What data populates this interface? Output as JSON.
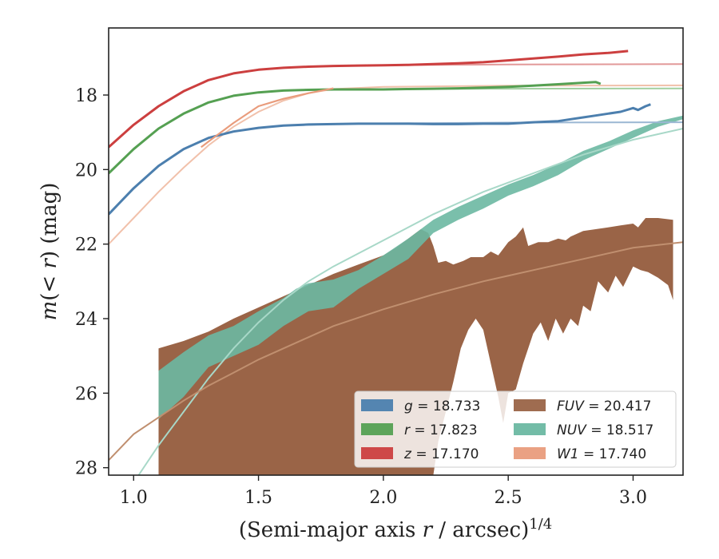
{
  "chart_data": {
    "type": "area",
    "xlabel_main": "(Semi-major axis ",
    "xlabel_var": "r",
    "xlabel_mid": " / arcsec)",
    "xlabel_sup": "1/4",
    "ylabel_pre": "m",
    "ylabel_mid": "(< ",
    "ylabel_var": "r",
    "ylabel_post": ") (mag)",
    "xlim": [
      0.9,
      3.2
    ],
    "ylim": [
      28.2,
      16.2
    ],
    "y_inverted": true,
    "xticks": [
      1.0,
      1.5,
      2.0,
      2.5,
      3.0
    ],
    "xtick_labels": [
      "1.0",
      "1.5",
      "2.0",
      "2.5",
      "3.0"
    ],
    "yticks": [
      18,
      20,
      22,
      24,
      26,
      28
    ],
    "ytick_labels": [
      "18",
      "20",
      "22",
      "24",
      "26",
      "28"
    ],
    "legend_location": "lower-right",
    "series": [
      {
        "name": "g = 18.733",
        "var": "g",
        "value": "18.733",
        "color": "#4c7fae",
        "model_color": "#9bb7d3",
        "points": [
          [
            0.9,
            21.2
          ],
          [
            1.0,
            20.5
          ],
          [
            1.1,
            19.9
          ],
          [
            1.2,
            19.45
          ],
          [
            1.3,
            19.15
          ],
          [
            1.4,
            18.98
          ],
          [
            1.5,
            18.88
          ],
          [
            1.6,
            18.82
          ],
          [
            1.7,
            18.79
          ],
          [
            1.8,
            18.78
          ],
          [
            1.9,
            18.77
          ],
          [
            2.0,
            18.77
          ],
          [
            2.1,
            18.77
          ],
          [
            2.2,
            18.78
          ],
          [
            2.3,
            18.78
          ],
          [
            2.4,
            18.77
          ],
          [
            2.5,
            18.77
          ],
          [
            2.6,
            18.73
          ],
          [
            2.7,
            18.7
          ],
          [
            2.75,
            18.65
          ],
          [
            2.8,
            18.6
          ],
          [
            2.85,
            18.55
          ],
          [
            2.9,
            18.5
          ],
          [
            2.95,
            18.45
          ],
          [
            3.0,
            18.35
          ],
          [
            3.02,
            18.4
          ],
          [
            3.05,
            18.3
          ],
          [
            3.07,
            18.25
          ]
        ],
        "model": [
          [
            0.9,
            21.2
          ],
          [
            1.0,
            20.5
          ],
          [
            1.1,
            19.9
          ],
          [
            1.2,
            19.45
          ],
          [
            1.3,
            19.15
          ],
          [
            1.4,
            18.98
          ],
          [
            1.5,
            18.88
          ],
          [
            1.6,
            18.82
          ],
          [
            1.8,
            18.78
          ],
          [
            2.0,
            18.76
          ],
          [
            2.5,
            18.74
          ],
          [
            3.2,
            18.73
          ]
        ]
      },
      {
        "name": "r = 17.823",
        "var": "r",
        "value": "17.823",
        "color": "#55a052",
        "model_color": "#a3cfa1",
        "points": [
          [
            0.9,
            20.1
          ],
          [
            1.0,
            19.45
          ],
          [
            1.1,
            18.9
          ],
          [
            1.2,
            18.5
          ],
          [
            1.3,
            18.2
          ],
          [
            1.4,
            18.02
          ],
          [
            1.5,
            17.93
          ],
          [
            1.6,
            17.88
          ],
          [
            1.7,
            17.86
          ],
          [
            1.8,
            17.85
          ],
          [
            1.9,
            17.85
          ],
          [
            2.0,
            17.85
          ],
          [
            2.1,
            17.84
          ],
          [
            2.2,
            17.83
          ],
          [
            2.3,
            17.82
          ],
          [
            2.4,
            17.8
          ],
          [
            2.5,
            17.78
          ],
          [
            2.6,
            17.75
          ],
          [
            2.7,
            17.71
          ],
          [
            2.8,
            17.67
          ],
          [
            2.85,
            17.65
          ],
          [
            2.87,
            17.7
          ]
        ],
        "model": [
          [
            0.9,
            20.1
          ],
          [
            1.0,
            19.45
          ],
          [
            1.1,
            18.9
          ],
          [
            1.2,
            18.5
          ],
          [
            1.3,
            18.2
          ],
          [
            1.4,
            18.02
          ],
          [
            1.5,
            17.93
          ],
          [
            1.6,
            17.88
          ],
          [
            1.8,
            17.85
          ],
          [
            2.0,
            17.84
          ],
          [
            2.5,
            17.83
          ],
          [
            3.2,
            17.823
          ]
        ]
      },
      {
        "name": "z = 17.170",
        "var": "z",
        "value": "17.170",
        "color": "#cc3f3f",
        "model_color": "#e29999",
        "points": [
          [
            0.9,
            19.4
          ],
          [
            1.0,
            18.8
          ],
          [
            1.1,
            18.3
          ],
          [
            1.2,
            17.9
          ],
          [
            1.3,
            17.6
          ],
          [
            1.4,
            17.42
          ],
          [
            1.5,
            17.32
          ],
          [
            1.6,
            17.27
          ],
          [
            1.7,
            17.24
          ],
          [
            1.8,
            17.22
          ],
          [
            1.9,
            17.21
          ],
          [
            2.0,
            17.2
          ],
          [
            2.1,
            17.19
          ],
          [
            2.2,
            17.17
          ],
          [
            2.3,
            17.15
          ],
          [
            2.4,
            17.12
          ],
          [
            2.5,
            17.07
          ],
          [
            2.6,
            17.02
          ],
          [
            2.7,
            16.97
          ],
          [
            2.8,
            16.91
          ],
          [
            2.9,
            16.87
          ],
          [
            2.98,
            16.82
          ]
        ],
        "model": [
          [
            0.9,
            19.4
          ],
          [
            1.0,
            18.8
          ],
          [
            1.1,
            18.3
          ],
          [
            1.2,
            17.9
          ],
          [
            1.3,
            17.6
          ],
          [
            1.4,
            17.42
          ],
          [
            1.5,
            17.32
          ],
          [
            1.6,
            17.27
          ],
          [
            1.8,
            17.22
          ],
          [
            2.0,
            17.2
          ],
          [
            2.5,
            17.18
          ],
          [
            3.2,
            17.17
          ]
        ]
      },
      {
        "name": "W1 = 17.740",
        "var": "W1",
        "value": "17.740",
        "color": "#e99c7c",
        "model_color": "#f1c1ab",
        "points": [
          [
            1.27,
            19.4
          ],
          [
            1.3,
            19.25
          ],
          [
            1.4,
            18.75
          ],
          [
            1.5,
            18.3
          ],
          [
            1.6,
            18.1
          ],
          [
            1.7,
            17.95
          ],
          [
            1.8,
            17.82
          ]
        ],
        "model": [
          [
            0.9,
            22.0
          ],
          [
            1.0,
            21.3
          ],
          [
            1.1,
            20.6
          ],
          [
            1.2,
            19.95
          ],
          [
            1.3,
            19.35
          ],
          [
            1.4,
            18.85
          ],
          [
            1.5,
            18.45
          ],
          [
            1.6,
            18.15
          ],
          [
            1.7,
            17.95
          ],
          [
            1.8,
            17.84
          ],
          [
            2.0,
            17.78
          ],
          [
            2.5,
            17.75
          ],
          [
            3.2,
            17.74
          ]
        ]
      }
    ],
    "bands": [
      {
        "name": "NUV = 18.517",
        "var": "NUV",
        "value": "18.517",
        "color": "#6cb8a2",
        "upper": [
          [
            1.1,
            25.4
          ],
          [
            1.2,
            24.9
          ],
          [
            1.3,
            24.45
          ],
          [
            1.4,
            24.2
          ],
          [
            1.5,
            23.8
          ],
          [
            1.6,
            23.45
          ],
          [
            1.65,
            23.2
          ],
          [
            1.7,
            23.05
          ],
          [
            1.8,
            22.95
          ],
          [
            1.9,
            22.7
          ],
          [
            2.0,
            22.3
          ],
          [
            2.1,
            21.85
          ],
          [
            2.2,
            21.35
          ],
          [
            2.3,
            21.0
          ],
          [
            2.4,
            20.7
          ],
          [
            2.5,
            20.4
          ],
          [
            2.6,
            20.15
          ],
          [
            2.7,
            19.85
          ],
          [
            2.8,
            19.5
          ],
          [
            2.9,
            19.25
          ],
          [
            3.0,
            18.95
          ],
          [
            3.1,
            18.7
          ],
          [
            3.2,
            18.55
          ]
        ],
        "lower": [
          [
            1.1,
            26.7
          ],
          [
            1.2,
            26.1
          ],
          [
            1.3,
            25.3
          ],
          [
            1.4,
            25.0
          ],
          [
            1.5,
            24.7
          ],
          [
            1.6,
            24.2
          ],
          [
            1.7,
            23.8
          ],
          [
            1.8,
            23.7
          ],
          [
            1.9,
            23.2
          ],
          [
            2.0,
            22.8
          ],
          [
            2.1,
            22.4
          ],
          [
            2.2,
            21.7
          ],
          [
            2.3,
            21.35
          ],
          [
            2.4,
            21.05
          ],
          [
            2.5,
            20.7
          ],
          [
            2.6,
            20.45
          ],
          [
            2.7,
            20.15
          ],
          [
            2.8,
            19.75
          ],
          [
            2.9,
            19.45
          ],
          [
            3.0,
            19.15
          ],
          [
            3.1,
            18.85
          ],
          [
            3.2,
            18.65
          ]
        ],
        "model": [
          [
            1.02,
            28.2
          ],
          [
            1.1,
            27.4
          ],
          [
            1.2,
            26.5
          ],
          [
            1.3,
            25.6
          ],
          [
            1.4,
            24.8
          ],
          [
            1.5,
            24.1
          ],
          [
            1.6,
            23.5
          ],
          [
            1.7,
            23.0
          ],
          [
            1.8,
            22.6
          ],
          [
            2.0,
            21.9
          ],
          [
            2.2,
            21.2
          ],
          [
            2.4,
            20.6
          ],
          [
            2.6,
            20.1
          ],
          [
            2.8,
            19.6
          ],
          [
            3.0,
            19.2
          ],
          [
            3.2,
            18.9
          ]
        ]
      },
      {
        "name": "FUV = 20.417",
        "var": "FUV",
        "value": "20.417",
        "color": "#9a6447",
        "upper": [
          [
            1.1,
            24.8
          ],
          [
            1.2,
            24.6
          ],
          [
            1.3,
            24.35
          ],
          [
            1.4,
            24.0
          ],
          [
            1.5,
            23.7
          ],
          [
            1.6,
            23.4
          ],
          [
            1.7,
            23.1
          ],
          [
            1.8,
            22.8
          ],
          [
            1.9,
            22.55
          ],
          [
            2.0,
            22.3
          ],
          [
            2.05,
            22.1
          ],
          [
            2.1,
            21.85
          ],
          [
            2.15,
            21.6
          ],
          [
            2.18,
            21.7
          ],
          [
            2.2,
            22.05
          ],
          [
            2.22,
            22.5
          ],
          [
            2.25,
            22.45
          ],
          [
            2.28,
            22.55
          ],
          [
            2.3,
            22.5
          ],
          [
            2.32,
            22.45
          ],
          [
            2.35,
            22.35
          ],
          [
            2.4,
            22.35
          ],
          [
            2.43,
            22.2
          ],
          [
            2.46,
            22.3
          ],
          [
            2.5,
            21.95
          ],
          [
            2.53,
            21.8
          ],
          [
            2.56,
            21.55
          ],
          [
            2.58,
            22.05
          ],
          [
            2.62,
            21.95
          ],
          [
            2.66,
            21.95
          ],
          [
            2.7,
            21.85
          ],
          [
            2.73,
            21.9
          ],
          [
            2.75,
            21.8
          ],
          [
            2.8,
            21.65
          ],
          [
            2.85,
            21.6
          ],
          [
            2.9,
            21.55
          ],
          [
            2.95,
            21.5
          ],
          [
            3.0,
            21.45
          ],
          [
            3.02,
            21.55
          ],
          [
            3.05,
            21.3
          ],
          [
            3.1,
            21.3
          ],
          [
            3.16,
            21.35
          ]
        ],
        "lower": [
          [
            1.1,
            28.2
          ],
          [
            2.2,
            28.2
          ],
          [
            2.22,
            27.3
          ],
          [
            2.25,
            26.5
          ],
          [
            2.28,
            25.7
          ],
          [
            2.31,
            24.8
          ],
          [
            2.34,
            24.3
          ],
          [
            2.37,
            24.0
          ],
          [
            2.4,
            24.3
          ],
          [
            2.43,
            25.2
          ],
          [
            2.46,
            26.1
          ],
          [
            2.48,
            26.8
          ],
          [
            2.5,
            26.0
          ],
          [
            2.53,
            25.9
          ],
          [
            2.56,
            25.2
          ],
          [
            2.6,
            24.4
          ],
          [
            2.63,
            24.1
          ],
          [
            2.66,
            24.6
          ],
          [
            2.69,
            24.0
          ],
          [
            2.72,
            24.4
          ],
          [
            2.75,
            24.0
          ],
          [
            2.78,
            24.2
          ],
          [
            2.8,
            23.65
          ],
          [
            2.83,
            23.8
          ],
          [
            2.86,
            23.0
          ],
          [
            2.9,
            23.3
          ],
          [
            2.93,
            22.85
          ],
          [
            2.96,
            23.15
          ],
          [
            3.0,
            22.6
          ],
          [
            3.03,
            22.7
          ],
          [
            3.06,
            22.75
          ],
          [
            3.1,
            22.9
          ],
          [
            3.14,
            23.1
          ],
          [
            3.16,
            23.5
          ]
        ],
        "model": [
          [
            0.9,
            27.8
          ],
          [
            1.0,
            27.1
          ],
          [
            1.1,
            26.65
          ],
          [
            1.2,
            26.2
          ],
          [
            1.3,
            25.8
          ],
          [
            1.4,
            25.45
          ],
          [
            1.5,
            25.1
          ],
          [
            1.6,
            24.8
          ],
          [
            1.7,
            24.5
          ],
          [
            1.8,
            24.2
          ],
          [
            2.0,
            23.75
          ],
          [
            2.2,
            23.35
          ],
          [
            2.4,
            23.0
          ],
          [
            2.6,
            22.7
          ],
          [
            2.8,
            22.4
          ],
          [
            3.0,
            22.1
          ],
          [
            3.2,
            21.95
          ]
        ]
      }
    ]
  }
}
